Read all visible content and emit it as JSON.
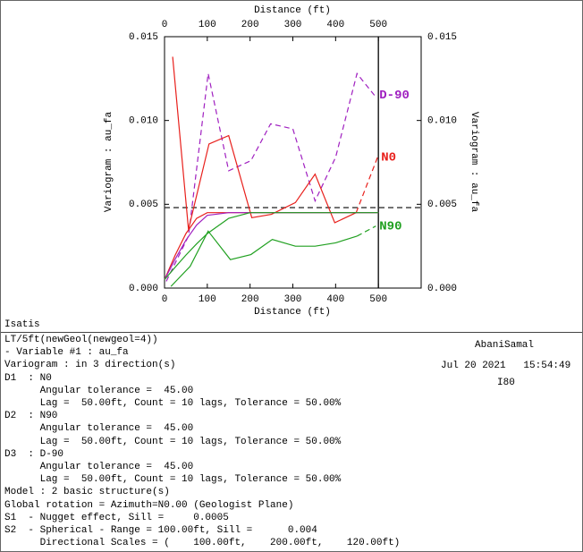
{
  "chart_data": {
    "type": "line",
    "x_label": "Distance (ft)",
    "y_label": "Variogram : au_fa",
    "xlim": [
      0,
      600
    ],
    "xticks": [
      0,
      100,
      200,
      300,
      400,
      500
    ],
    "ylim": [
      0,
      0.015
    ],
    "yticks": [
      {
        "value": 0,
        "label": "0.000"
      },
      {
        "value": 0.005,
        "label": "0.005"
      },
      {
        "value": 0.01,
        "label": "0.010"
      },
      {
        "value": 0.015,
        "label": "0.015"
      }
    ],
    "y2lim": [
      0,
      0.015
    ],
    "y2ticks": [
      {
        "value": 0,
        "label": "0.000"
      },
      {
        "value": 0.005,
        "label": "0.005"
      },
      {
        "value": 0.01,
        "label": "0.010"
      },
      {
        "value": 0.015,
        "label": "0.015"
      }
    ],
    "hlines": [
      0.0048
    ],
    "vlines": [
      500
    ],
    "series": [
      {
        "name": "D-90",
        "color": "#a020c0",
        "style": "dashed",
        "last_segment_dashed": false,
        "x": [
          4,
          56,
          102,
          150,
          202,
          248,
          300,
          352,
          400,
          450,
          494
        ],
        "values": [
          0.0004,
          0.0031,
          0.0128,
          0.007,
          0.0076,
          0.0098,
          0.0095,
          0.0052,
          0.0078,
          0.0128,
          0.0114
        ]
      },
      {
        "name": "N0",
        "color": "#e8201c",
        "style": "solid",
        "last_segment_dashed": true,
        "x": [
          19,
          56,
          104,
          150,
          204,
          250,
          306,
          352,
          398,
          448,
          498
        ],
        "values": [
          0.0138,
          0.0035,
          0.0086,
          0.0091,
          0.0042,
          0.0044,
          0.0051,
          0.0068,
          0.0039,
          0.0045,
          0.0078
        ]
      },
      {
        "name": "N90",
        "color": "#20a020",
        "style": "solid",
        "last_segment_dashed": true,
        "x": [
          15,
          60,
          102,
          154,
          202,
          252,
          306,
          352,
          400,
          450,
          494
        ],
        "values": [
          0.0001,
          0.0013,
          0.0034,
          0.0017,
          0.002,
          0.0029,
          0.0025,
          0.0025,
          0.0027,
          0.0031,
          0.0037
        ]
      },
      {
        "color": "#e8201c",
        "style": "solid",
        "last_segment_dashed": false,
        "x": [
          0,
          25,
          50,
          75,
          100,
          150,
          200,
          300,
          400,
          500
        ],
        "values": [
          0.0005,
          0.00197,
          0.00325,
          0.00416,
          0.0045,
          0.0045,
          0.0045,
          0.0045,
          0.0045,
          0.0045
        ]
      },
      {
        "color": "#a020c0",
        "style": "solid",
        "last_segment_dashed": false,
        "x": [
          0,
          25,
          50,
          75,
          100,
          150,
          200,
          300,
          400,
          500
        ],
        "values": [
          0.0005,
          0.00173,
          0.00286,
          0.00376,
          0.00434,
          0.0045,
          0.0045,
          0.0045,
          0.0045,
          0.0045
        ]
      },
      {
        "color": "#20a020",
        "style": "solid",
        "last_segment_dashed": false,
        "x": [
          0,
          25,
          50,
          75,
          100,
          150,
          200,
          300,
          400,
          500
        ],
        "values": [
          0.0005,
          0.00125,
          0.00197,
          0.00264,
          0.00325,
          0.00416,
          0.0045,
          0.0045,
          0.0045,
          0.0045
        ]
      }
    ]
  },
  "footer": {
    "app": "Isatis",
    "lines": [
      "LT/5ft(newGeol(newgeol=4))",
      "- Variable #1 : au_fa",
      "Variogram : in 3 direction(s)",
      "D1  : N0",
      "      Angular tolerance =  45.00",
      "      Lag =  50.00ft, Count = 10 lags, Tolerance = 50.00%",
      "D2  : N90",
      "      Angular tolerance =  45.00",
      "      Lag =  50.00ft, Count = 10 lags, Tolerance = 50.00%",
      "D3  : D-90",
      "      Angular tolerance =  45.00",
      "      Lag =  50.00ft, Count = 10 lags, Tolerance = 50.00%",
      "Model : 2 basic structure(s)",
      "Global rotation = Azimuth=N0.00 (Geologist Plane)",
      "S1  - Nugget effect, Sill =     0.0005",
      "S2  - Spherical - Range = 100.00ft, Sill =      0.004",
      "      Directional Scales = (    100.00ft,    200.00ft,    120.00ft)"
    ],
    "user": "AbaniSamal",
    "date": "Jul 20 2021   15:54:49",
    "code": "I80"
  }
}
